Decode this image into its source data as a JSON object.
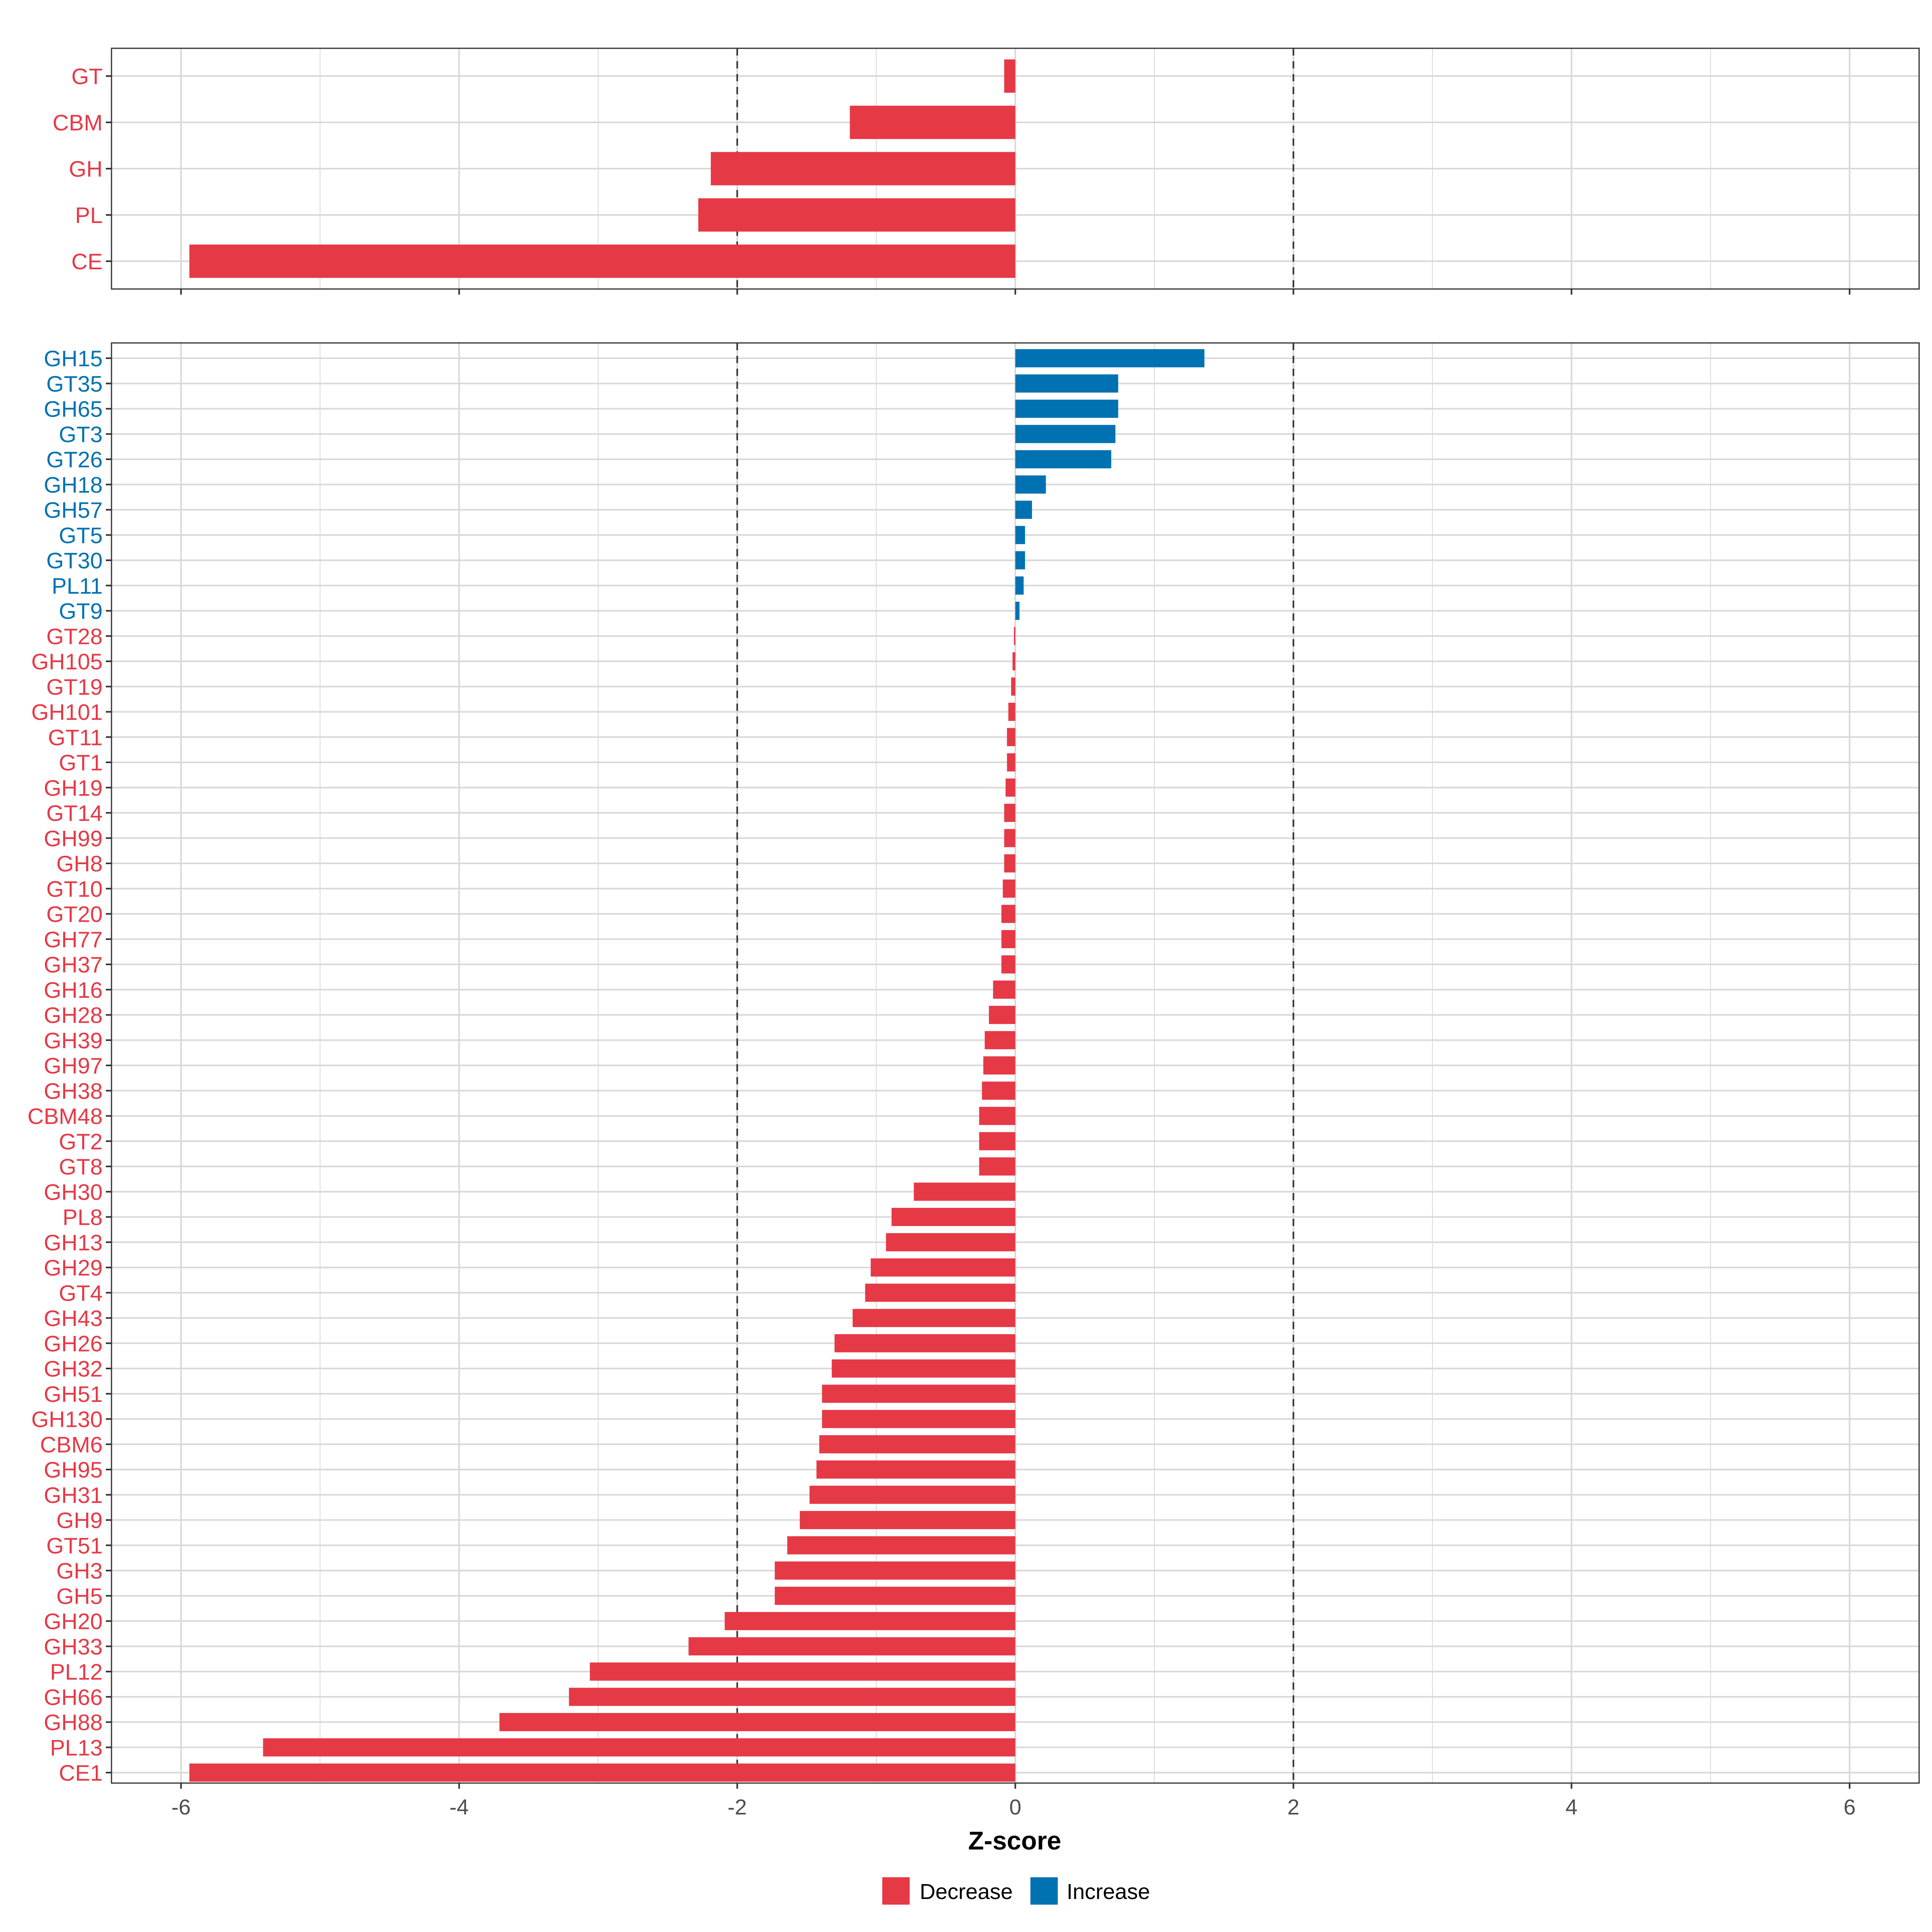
{
  "chart_data": [
    {
      "type": "bar",
      "orientation": "horizontal",
      "panel": "top",
      "categories": [
        "GT",
        "CBM",
        "GH",
        "PL",
        "CE"
      ],
      "values": [
        -0.08,
        -1.19,
        -2.19,
        -2.28,
        -5.94
      ],
      "groups": [
        "Decrease",
        "Decrease",
        "Decrease",
        "Decrease",
        "Decrease"
      ],
      "xlim": [
        -6.5,
        6.5
      ],
      "reference_lines": [
        -2,
        2
      ]
    },
    {
      "type": "bar",
      "orientation": "horizontal",
      "panel": "bottom",
      "categories": [
        "GH15",
        "GT35",
        "GH65",
        "GT3",
        "GT26",
        "GH18",
        "GH57",
        "GT5",
        "GT30",
        "PL11",
        "GT9",
        "GT28",
        "GH105",
        "GT19",
        "GH101",
        "GT11",
        "GT1",
        "GH19",
        "GT14",
        "GH99",
        "GH8",
        "GT10",
        "GT20",
        "GH77",
        "GH37",
        "GH16",
        "GH28",
        "GH39",
        "GH97",
        "GH38",
        "CBM48",
        "GT2",
        "GT8",
        "GH30",
        "PL8",
        "GH13",
        "GH29",
        "GT4",
        "GH43",
        "GH26",
        "GH32",
        "GH51",
        "GH130",
        "CBM6",
        "GH95",
        "GH31",
        "GH9",
        "GT51",
        "GH3",
        "GH5",
        "GH20",
        "GH33",
        "PL12",
        "GH66",
        "GH88",
        "PL13",
        "CE1"
      ],
      "values": [
        1.36,
        0.74,
        0.74,
        0.72,
        0.69,
        0.22,
        0.12,
        0.07,
        0.07,
        0.06,
        0.03,
        -0.01,
        -0.02,
        -0.03,
        -0.05,
        -0.06,
        -0.06,
        -0.07,
        -0.08,
        -0.08,
        -0.08,
        -0.09,
        -0.1,
        -0.1,
        -0.1,
        -0.16,
        -0.19,
        -0.22,
        -0.23,
        -0.24,
        -0.26,
        -0.26,
        -0.26,
        -0.73,
        -0.89,
        -0.93,
        -1.04,
        -1.08,
        -1.17,
        -1.3,
        -1.32,
        -1.39,
        -1.39,
        -1.41,
        -1.43,
        -1.48,
        -1.55,
        -1.64,
        -1.73,
        -1.73,
        -2.09,
        -2.35,
        -3.06,
        -3.21,
        -3.71,
        -5.41,
        -5.94
      ],
      "groups": [
        "Increase",
        "Increase",
        "Increase",
        "Increase",
        "Increase",
        "Increase",
        "Increase",
        "Increase",
        "Increase",
        "Increase",
        "Increase",
        "Decrease",
        "Decrease",
        "Decrease",
        "Decrease",
        "Decrease",
        "Decrease",
        "Decrease",
        "Decrease",
        "Decrease",
        "Decrease",
        "Decrease",
        "Decrease",
        "Decrease",
        "Decrease",
        "Decrease",
        "Decrease",
        "Decrease",
        "Decrease",
        "Decrease",
        "Decrease",
        "Decrease",
        "Decrease",
        "Decrease",
        "Decrease",
        "Decrease",
        "Decrease",
        "Decrease",
        "Decrease",
        "Decrease",
        "Decrease",
        "Decrease",
        "Decrease",
        "Decrease",
        "Decrease",
        "Decrease",
        "Decrease",
        "Decrease",
        "Decrease",
        "Decrease",
        "Decrease",
        "Decrease",
        "Decrease",
        "Decrease",
        "Decrease",
        "Decrease",
        "Decrease"
      ],
      "xlim": [
        -6.5,
        6.5
      ],
      "reference_lines": [
        -2,
        2
      ]
    }
  ],
  "axis": {
    "xlabel": "Z-score",
    "xticks": [
      -6,
      -4,
      -2,
      0,
      2,
      4,
      6
    ],
    "xtick_labels": [
      "-6",
      "-4",
      "-2",
      "0",
      "2",
      "4",
      "6"
    ]
  },
  "legend": {
    "placement": "bottom",
    "entries": [
      {
        "label": "Decrease",
        "color": "#e63946"
      },
      {
        "label": "Increase",
        "color": "#0072b2"
      }
    ]
  },
  "colors": {
    "Decrease": "#e63946",
    "Increase": "#0072b2",
    "grid": "#d9d9d9",
    "panel_border": "#333333",
    "reference_line": "#333333"
  }
}
